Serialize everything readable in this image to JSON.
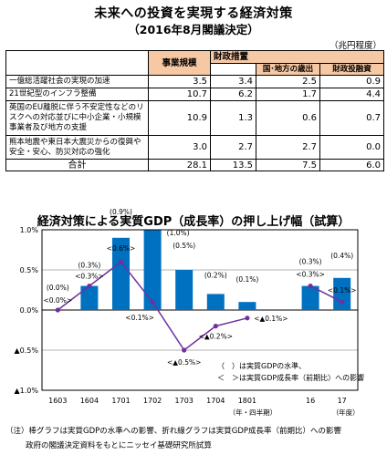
{
  "title": "未来への投資を実現する経済対策",
  "subtitle": "（2016年8月閣議決定）",
  "unit": "（兆円程度）",
  "table": {
    "col_total": "事業規模",
    "col_fiscal": "財政措置",
    "col_local": "国･地方の歳出",
    "col_fiscal_invest": "財政投融資",
    "rows": [
      {
        "label": "一億総活躍社会の実現の加速",
        "total": "3.5",
        "fiscal": "3.4",
        "local": "2.5",
        "invest": "0.9"
      },
      {
        "label": "21世紀型のインフラ整備",
        "total": "10.7",
        "fiscal": "6.2",
        "local": "1.7",
        "invest": "4.4"
      },
      {
        "label": "英国のEU離脱に伴う不安定性などのリスクへの対応並びに中小企業・小規模事業者及び地方の支援",
        "total": "10.9",
        "fiscal": "1.3",
        "local": "0.6",
        "invest": "0.7"
      },
      {
        "label": "熊本地震や東日本大震災からの復興や安全・安心、防災対応の強化",
        "total": "3.0",
        "fiscal": "2.7",
        "local": "2.7",
        "invest": "0.0"
      }
    ],
    "sum": {
      "label": "合計",
      "total": "28.1",
      "fiscal": "13.5",
      "local": "7.5",
      "invest": "6.0"
    }
  },
  "chart_title": "経済対策による実質GDP（成長率）の押し上げ幅（試算）",
  "chart_data": {
    "type": "bar",
    "categories": [
      "1603",
      "1604",
      "1701",
      "1702",
      "1703",
      "1704",
      "1801",
      "16",
      "17"
    ],
    "xlabel_quarter": "（年・四半期）",
    "xlabel_year": "（年度）",
    "ylim": [
      -1.0,
      1.0
    ],
    "yticks": [
      "1.0%",
      "0.5%",
      "0.0%",
      "▲0.5%",
      "▲1.0%"
    ],
    "series": [
      {
        "name": "実質GDPの水準",
        "kind": "bar",
        "color": "#0070c0",
        "values": [
          0.0,
          0.3,
          0.9,
          1.0,
          0.5,
          0.2,
          0.1,
          0.3,
          0.4
        ],
        "labels": [
          "(0.0%)",
          "(0.3%)",
          "(0.9%)",
          "(1.0%)",
          "(0.5%)",
          "(0.2%)",
          "(0.1%)",
          "(0.3%)",
          "(0.4%)"
        ]
      },
      {
        "name": "実質GDP成長率（前期比）への影響",
        "kind": "line",
        "color": "#7030a0",
        "values": [
          0.0,
          0.3,
          0.6,
          0.1,
          -0.5,
          -0.2,
          -0.1,
          0.3,
          0.1
        ],
        "labels": [
          "<0.0%>",
          "<0.3%>",
          "<0.6%>",
          "<0.1%>",
          "<▲0.5%>",
          "<▲0.2%>",
          "<▲0.1%>",
          "<0.3%>",
          "<0.1%>"
        ]
      }
    ],
    "legend": {
      "paren": "（　）は実質GDPの水準、",
      "angle": "＜　＞は実質GDP成長率（前期比）への影響"
    }
  },
  "note": "（注）棒グラフは実質GDPの水準への影響、折れ線グラフは実質GDP成長率（前期比）への影響",
  "source": "政府の閣議決定資料をもとにニッセイ基礎研究所試算"
}
